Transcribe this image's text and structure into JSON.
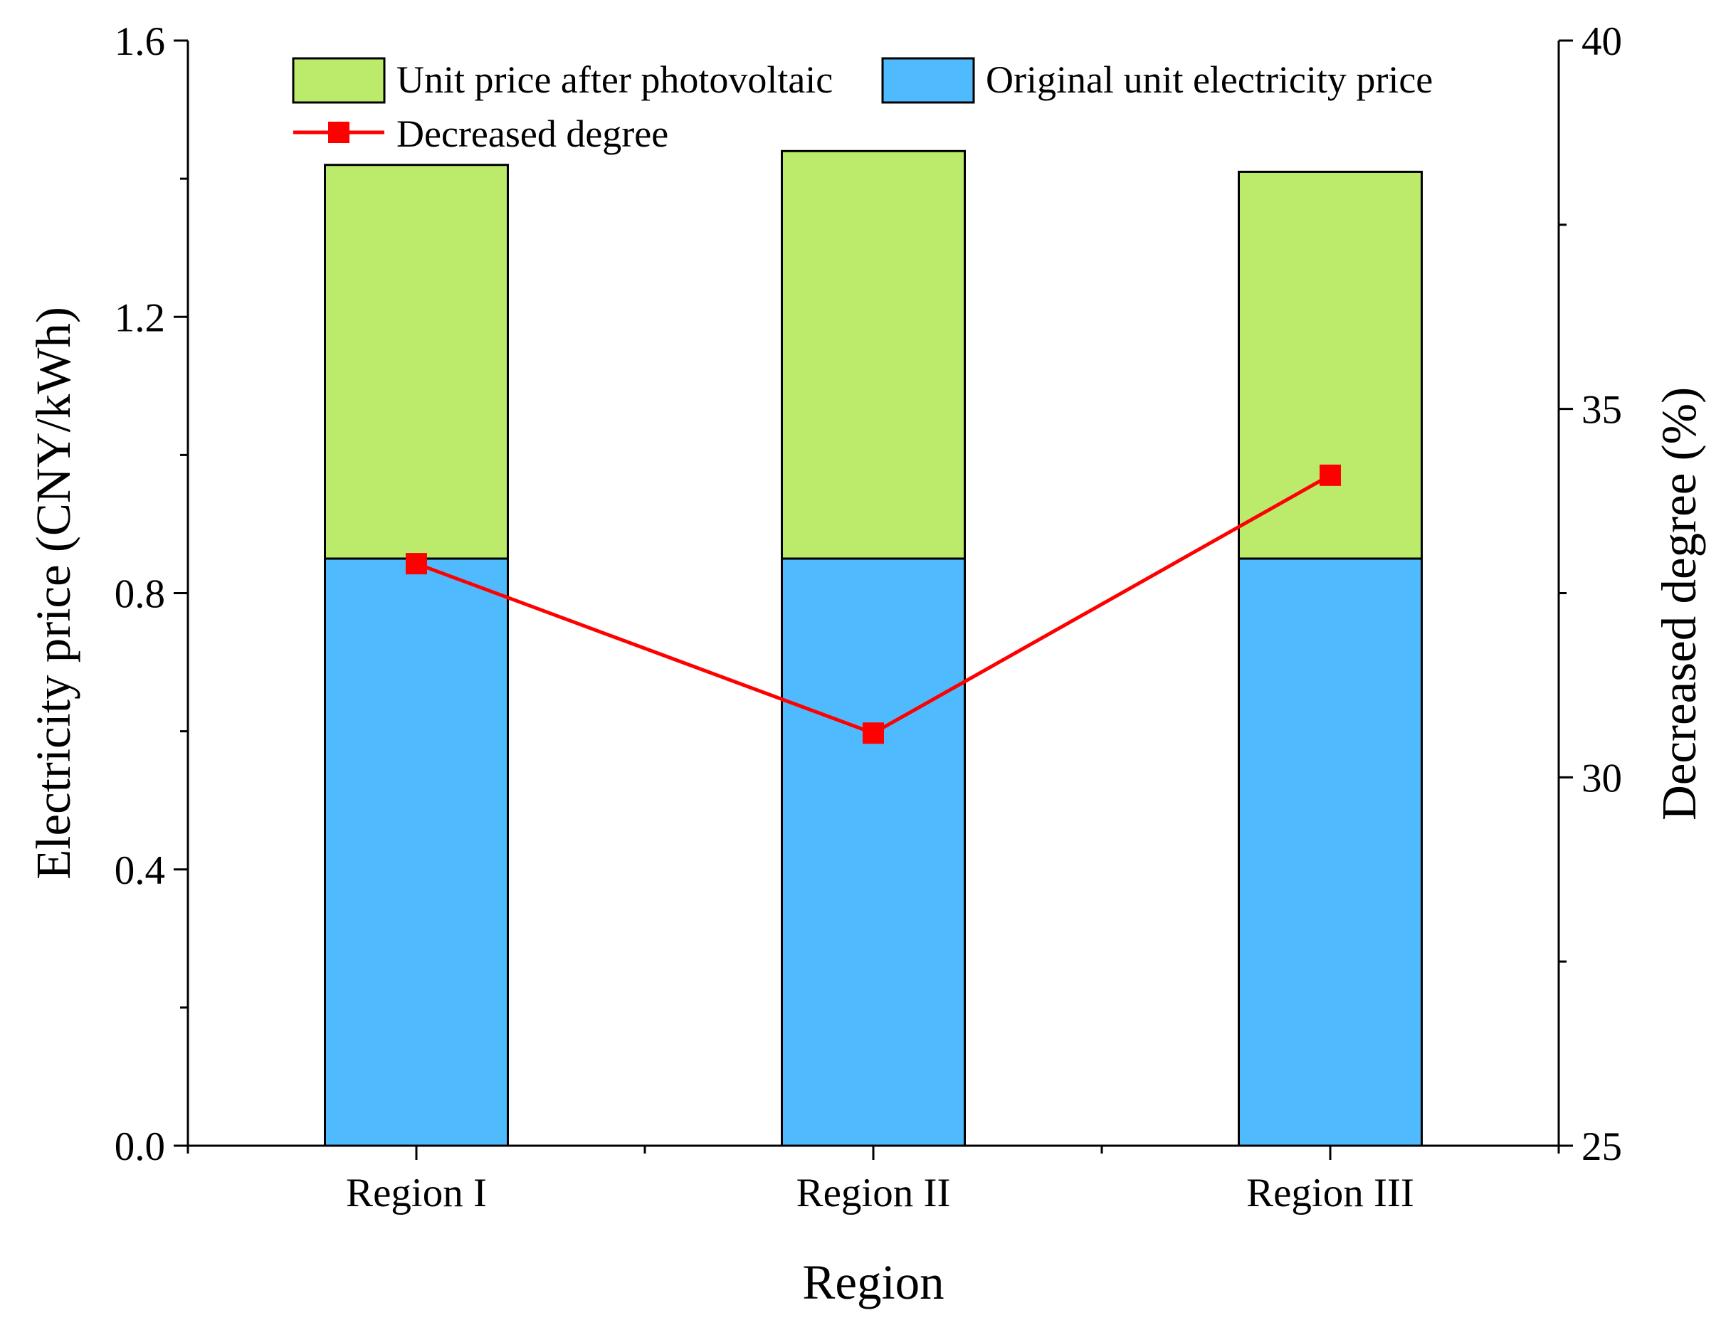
{
  "chart_data": {
    "type": "bar",
    "subtype": "stacked bar with line on secondary axis",
    "xlabel": "Region",
    "categories": [
      "Region I",
      "Region II",
      "Region III"
    ],
    "ylabel": "Electricity price (CNY/kWh)",
    "ylim": [
      0,
      1.6
    ],
    "yticks": [
      "0.0",
      "0.4",
      "0.8",
      "1.2",
      "1.6"
    ],
    "y2label": "Decreased degree (%)",
    "y2lim": [
      25,
      40
    ],
    "y2ticks": [
      "25",
      "30",
      "35",
      "40"
    ],
    "series": [
      {
        "name": "Original unit electricity price",
        "kind": "bar",
        "axis": "left",
        "stack_order": 0,
        "color": "#4FBAFD",
        "values": [
          0.85,
          0.85,
          0.85
        ]
      },
      {
        "name": "Unit price after photovoltaic",
        "kind": "bar",
        "axis": "left",
        "stack_order": 1,
        "color": "#BCEB6B",
        "values": [
          0.57,
          0.59,
          0.56
        ]
      },
      {
        "name": "Decreased degree",
        "kind": "line",
        "axis": "right",
        "marker": "square",
        "color": "#FF0000",
        "values": [
          32.9,
          30.6,
          34.1
        ]
      }
    ],
    "legend": {
      "position": "top",
      "order": [
        "Unit price after photovoltaic",
        "Original unit electricity price",
        "Decreased degree"
      ]
    },
    "grid": false
  }
}
